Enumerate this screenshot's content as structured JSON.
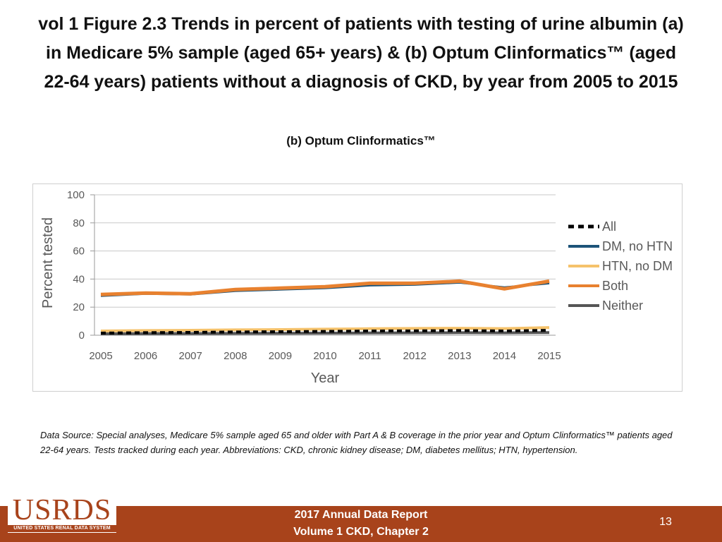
{
  "title_lines": [
    "vol 1 Figure 2.3 Trends in percent of patients with testing of urine albumin (a)",
    "in Medicare 5% sample (aged 65+ years) & (b) Optum Clinformatics™ (aged",
    "22-64 years) patients without a diagnosis of CKD, by year from 2005 to 2015"
  ],
  "subtitle": "(b) Optum Clinformatics™",
  "footnote": "Data Source: Special analyses, Medicare 5% sample aged 65 and older with Part A & B coverage in the prior year and Optum Clinformatics™ patients aged 22-64 years. Tests tracked during each year. Abbreviations: CKD, chronic kidney disease; DM, diabetes mellitus; HTN, hypertension.",
  "footer": {
    "logo_text": "USRDS",
    "logo_subtext": "UNITED STATES RENAL DATA SYSTEM",
    "report_line1": "2017 Annual Data Report",
    "report_line2": "Volume 1 CKD, Chapter 2",
    "page_number": "13"
  },
  "chart_data": {
    "type": "line",
    "title": "",
    "xlabel": "Year",
    "ylabel": "Percent tested",
    "x": [
      2005,
      2006,
      2007,
      2008,
      2009,
      2010,
      2011,
      2012,
      2013,
      2014,
      2015
    ],
    "ylim": [
      0,
      100
    ],
    "yticks": [
      0,
      20,
      40,
      60,
      80,
      100
    ],
    "grid": true,
    "legend_position": "right",
    "series": [
      {
        "name": "All",
        "color": "#000000",
        "style": "dashed",
        "values": [
          1.5,
          1.8,
          2.0,
          2.3,
          2.5,
          2.7,
          3.0,
          3.1,
          3.3,
          3.0,
          3.5
        ]
      },
      {
        "name": "DM, no HTN",
        "color": "#1d5479",
        "style": "solid",
        "values": [
          28.0,
          29.5,
          29.0,
          31.5,
          32.5,
          33.5,
          35.5,
          36.0,
          37.5,
          34.0,
          37.0
        ]
      },
      {
        "name": "HTN, no DM",
        "color": "#f5c26b",
        "style": "solid",
        "values": [
          3.0,
          3.3,
          3.5,
          3.8,
          4.0,
          4.3,
          4.6,
          4.8,
          5.0,
          4.7,
          5.5
        ]
      },
      {
        "name": "Both",
        "color": "#e8812f",
        "style": "solid",
        "values": [
          29.0,
          30.0,
          29.5,
          32.5,
          33.5,
          34.5,
          37.0,
          37.0,
          38.5,
          33.0,
          38.5
        ]
      },
      {
        "name": "Neither",
        "color": "#555555",
        "style": "solid",
        "values": [
          1.0,
          1.1,
          1.2,
          1.3,
          1.4,
          1.5,
          1.6,
          1.7,
          1.8,
          1.7,
          1.9
        ]
      }
    ]
  }
}
